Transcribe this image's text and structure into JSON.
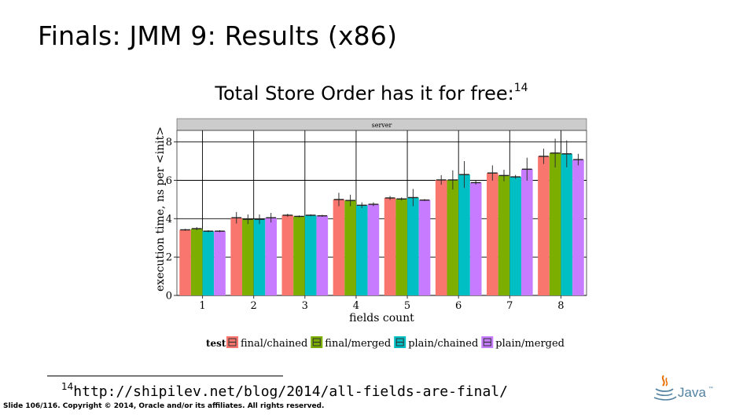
{
  "slide": {
    "title": "Finals: JMM 9: Results (x86)",
    "subtitle": "Total Store Order has it for free:",
    "footnote_mark": "14",
    "footnote_number": "14",
    "footnote_url": "http://shipilev.net/blog/2014/all-fields-are-final/",
    "footer": "Slide 106/116. Copyright © 2014, Oracle and/or its affiliates. All rights reserved.",
    "logo_text": "Java",
    "logo_tm": "™"
  },
  "chart_data": {
    "type": "bar",
    "panel_label": "server",
    "xlabel": "fields count",
    "ylabel": "execution time, ns per <init>",
    "categories": [
      "1",
      "2",
      "3",
      "4",
      "5",
      "6",
      "7",
      "8"
    ],
    "ylim": [
      0,
      8.6
    ],
    "yticks": [
      0,
      2,
      4,
      6,
      8
    ],
    "grid": true,
    "legend_title": "test",
    "legend_position": "bottom",
    "series": [
      {
        "name": "final/chained",
        "color": "#f8766d",
        "values": [
          3.42,
          4.05,
          4.18,
          5.0,
          5.08,
          6.02,
          6.38,
          7.25
        ],
        "errors": [
          0.05,
          0.3,
          0.08,
          0.35,
          0.1,
          0.25,
          0.4,
          0.4
        ]
      },
      {
        "name": "final/merged",
        "color": "#7cae00",
        "values": [
          3.48,
          3.97,
          4.12,
          4.95,
          5.03,
          6.02,
          6.25,
          7.42
        ],
        "errors": [
          0.08,
          0.25,
          0.05,
          0.3,
          0.08,
          0.5,
          0.3,
          0.75
        ]
      },
      {
        "name": "plain/chained",
        "color": "#00bfc4",
        "values": [
          3.35,
          3.97,
          4.18,
          4.7,
          5.1,
          6.3,
          6.18,
          7.38
        ],
        "errors": [
          0.05,
          0.25,
          0.05,
          0.15,
          0.45,
          0.7,
          0.1,
          0.7
        ]
      },
      {
        "name": "plain/merged",
        "color": "#c77cff",
        "values": [
          3.35,
          4.05,
          4.15,
          4.75,
          4.97,
          5.88,
          6.58,
          7.08
        ],
        "errors": [
          0.05,
          0.25,
          0.05,
          0.1,
          0.05,
          0.1,
          0.6,
          0.3
        ]
      }
    ]
  }
}
